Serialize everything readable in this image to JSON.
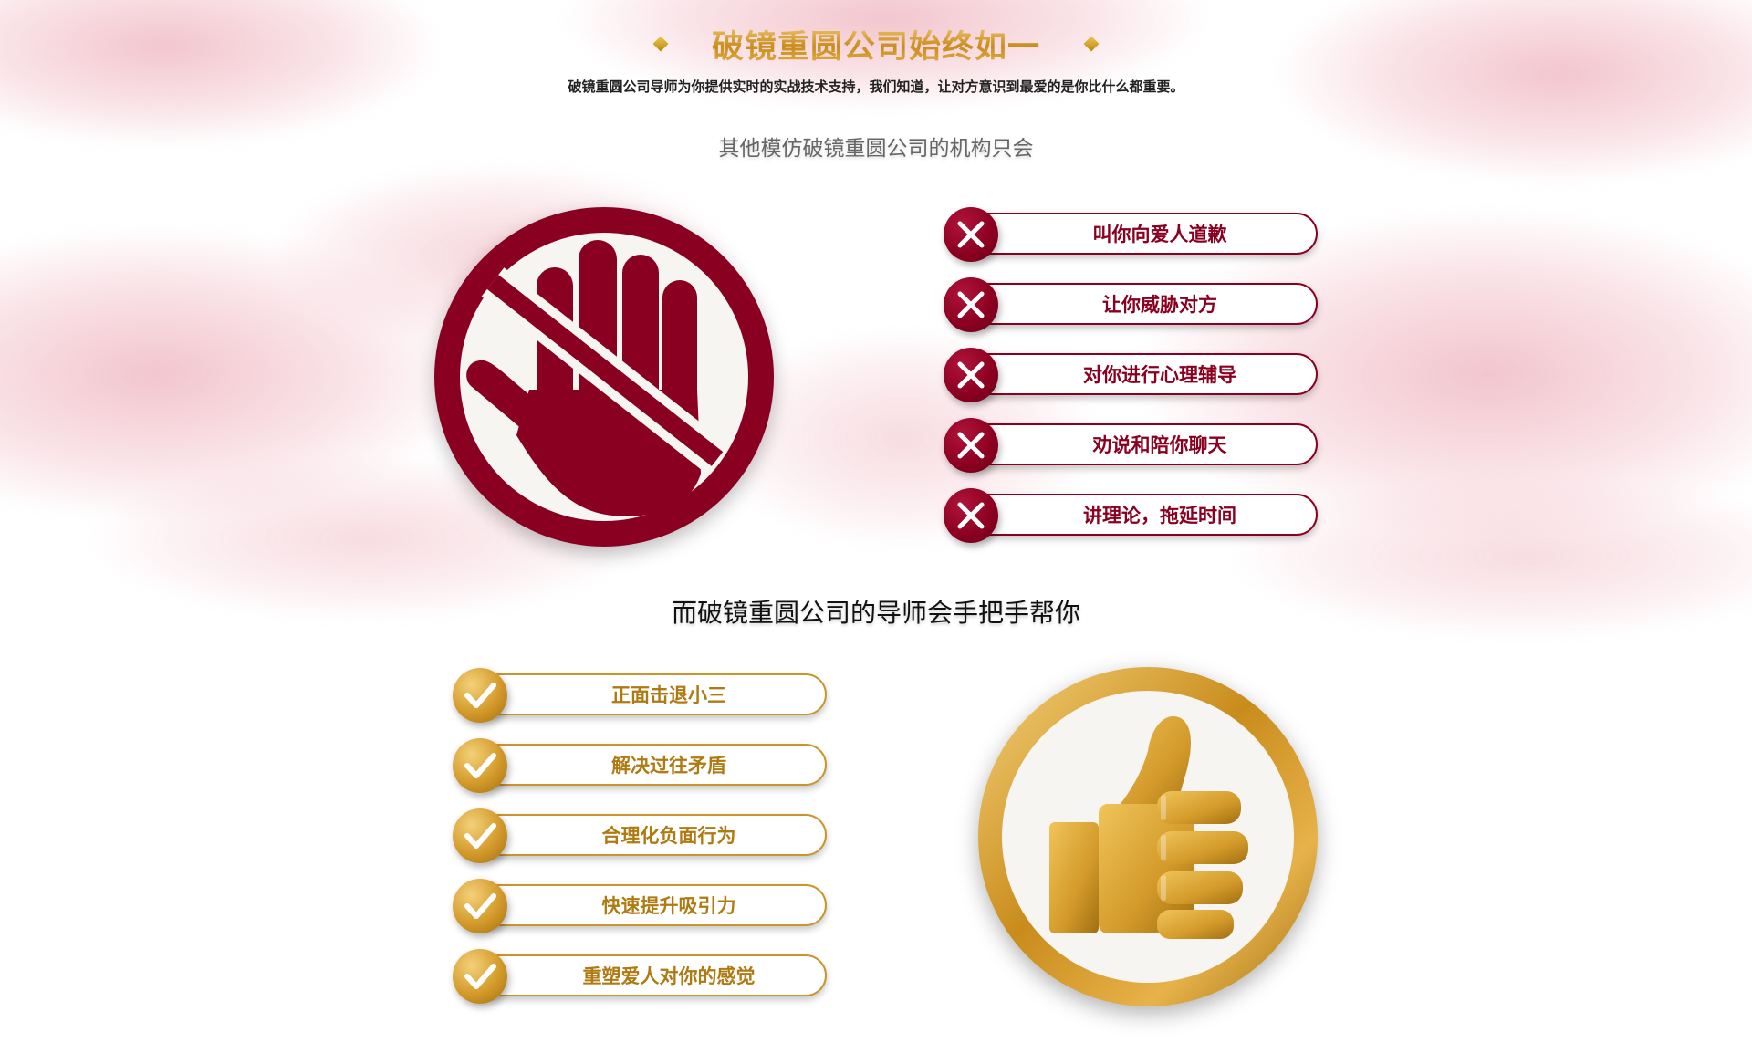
{
  "header": {
    "title": "破镜重圆公司始终如一",
    "subtitle": "破镜重圆公司导师为你提供实时的实战技术支持，我们知道，让对方意识到最爱的是你比什么都重要。"
  },
  "section_bad": {
    "heading": "其他模仿破镜重圆公司的机构只会",
    "sign_icon": "stop-hand-icon",
    "item_icon": "cross-icon",
    "items": [
      {
        "label": "叫你向爱人道歉"
      },
      {
        "label": "让你威胁对方"
      },
      {
        "label": "对你进行心理辅导"
      },
      {
        "label": "劝说和陪你聊天"
      },
      {
        "label": "讲理论，拖延时间"
      }
    ]
  },
  "section_good": {
    "heading": "而破镜重圆公司的导师会手把手帮你",
    "sign_icon": "thumbs-up-icon",
    "item_icon": "check-icon",
    "items": [
      {
        "label": "正面击退小三"
      },
      {
        "label": "解决过往矛盾"
      },
      {
        "label": "合理化负面行为"
      },
      {
        "label": "快速提升吸引力"
      },
      {
        "label": "重塑爱人对你的感觉"
      }
    ]
  },
  "colors": {
    "crimson": "#8a0020",
    "gold": "#d39a2a",
    "gold_light": "#f4d17a",
    "gold_dark": "#a06f12"
  }
}
